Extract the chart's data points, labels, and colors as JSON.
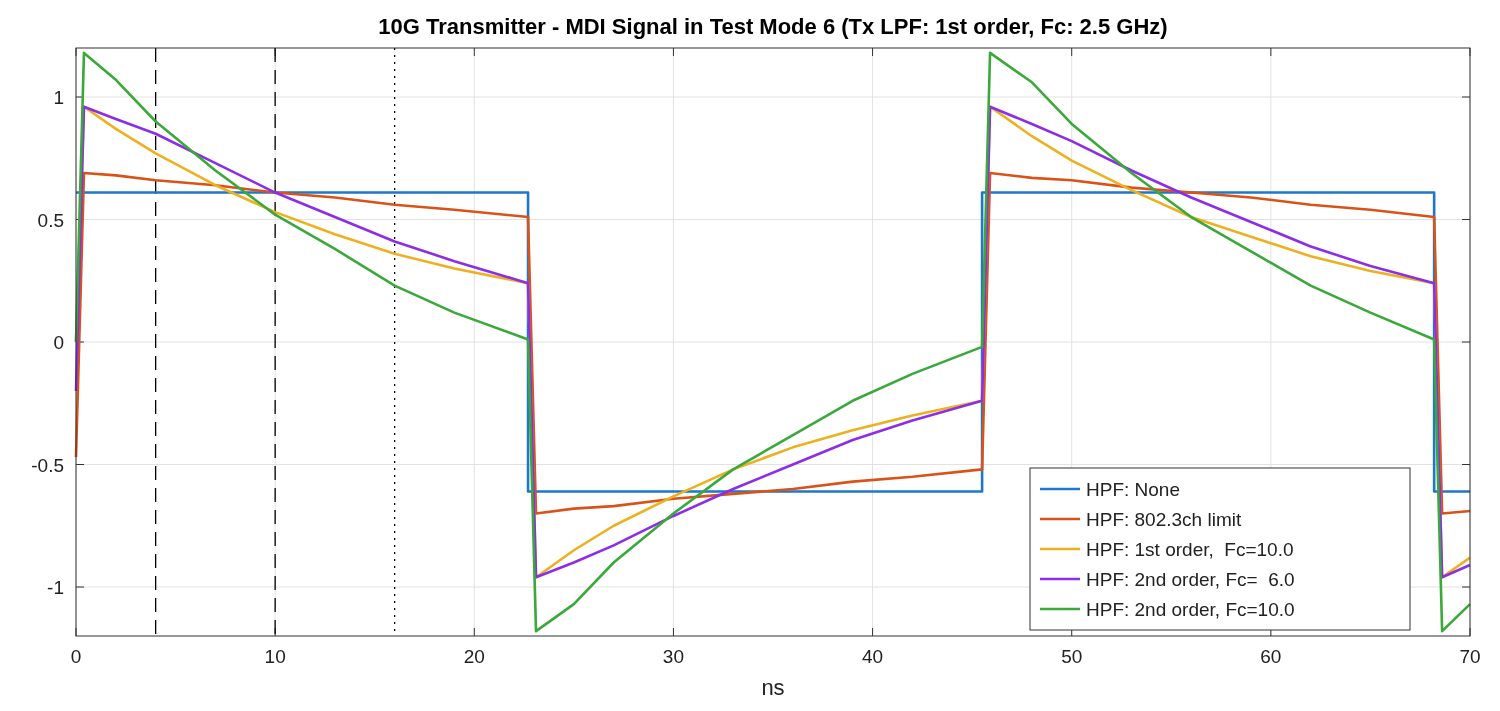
{
  "chart_data": {
    "type": "line",
    "title": "10G Transmitter - MDI Signal in Test Mode 6 (Tx LPF: 1st order, Fc: 2.5 GHz)",
    "xlabel": "ns",
    "x": [
      0,
      0.4,
      2,
      4,
      7,
      10,
      13,
      16,
      19,
      22.7,
      22.7,
      23.1,
      25,
      27,
      30,
      33,
      36,
      39,
      42,
      45.5,
      45.5,
      45.9,
      48,
      50,
      53,
      56,
      59,
      62,
      65,
      68.2,
      68.2,
      68.6,
      70
    ],
    "series": [
      {
        "name": "HPF: None",
        "color": "#1f77c9",
        "values": [
          0.61,
          0.61,
          0.61,
          0.61,
          0.61,
          0.61,
          0.61,
          0.61,
          0.61,
          0.61,
          -0.61,
          -0.61,
          -0.61,
          -0.61,
          -0.61,
          -0.61,
          -0.61,
          -0.61,
          -0.61,
          -0.61,
          0.61,
          0.61,
          0.61,
          0.61,
          0.61,
          0.61,
          0.61,
          0.61,
          0.61,
          0.61,
          -0.61,
          -0.61,
          -0.61
        ]
      },
      {
        "name": "HPF: 802.3ch limit",
        "color": "#d95319",
        "values": [
          -0.47,
          0.69,
          0.68,
          0.66,
          0.64,
          0.61,
          0.59,
          0.56,
          0.54,
          0.51,
          0.51,
          -0.7,
          -0.68,
          -0.67,
          -0.64,
          -0.62,
          -0.6,
          -0.57,
          -0.55,
          -0.52,
          -0.52,
          0.69,
          0.67,
          0.66,
          0.63,
          0.61,
          0.59,
          0.56,
          0.54,
          0.51,
          0.51,
          -0.7,
          -0.69
        ]
      },
      {
        "name": "HPF: 1st order,  Fc=10.0",
        "color": "#edb120",
        "values": [
          0,
          0.96,
          0.87,
          0.77,
          0.64,
          0.53,
          0.44,
          0.36,
          0.3,
          0.24,
          0.24,
          -0.96,
          -0.85,
          -0.75,
          -0.63,
          -0.52,
          -0.43,
          -0.36,
          -0.3,
          -0.24,
          -0.24,
          0.96,
          0.84,
          0.74,
          0.62,
          0.51,
          0.43,
          0.35,
          0.29,
          0.24,
          0.24,
          -0.96,
          -0.88
        ]
      },
      {
        "name": "HPF: 2nd order, Fc=  6.0",
        "color": "#8c2ee6",
        "values": [
          -0.2,
          0.96,
          0.91,
          0.85,
          0.73,
          0.61,
          0.51,
          0.41,
          0.33,
          0.24,
          0.24,
          -0.96,
          -0.9,
          -0.83,
          -0.71,
          -0.6,
          -0.5,
          -0.4,
          -0.32,
          -0.24,
          -0.24,
          0.96,
          0.89,
          0.82,
          0.7,
          0.59,
          0.49,
          0.39,
          0.31,
          0.24,
          0.24,
          -0.96,
          -0.91
        ]
      },
      {
        "name": "HPF: 2nd order, Fc=10.0",
        "color": "#3aa83a",
        "values": [
          0,
          1.18,
          1.07,
          0.9,
          0.7,
          0.52,
          0.38,
          0.23,
          0.12,
          0.01,
          0.01,
          -1.18,
          -1.07,
          -0.9,
          -0.7,
          -0.52,
          -0.38,
          -0.24,
          -0.13,
          -0.02,
          -0.02,
          1.18,
          1.06,
          0.89,
          0.69,
          0.51,
          0.37,
          0.23,
          0.12,
          0.01,
          0.01,
          -1.18,
          -1.07
        ]
      }
    ],
    "xlim": [
      0,
      70
    ],
    "xticks": [
      0,
      10,
      20,
      30,
      40,
      50,
      60,
      70
    ],
    "ylim": [
      -1.2,
      1.2
    ],
    "yticks": [
      -1,
      -0.5,
      0,
      0.5,
      1
    ],
    "ref_lines": [
      {
        "axis": "x",
        "value": 4,
        "color": "#000000",
        "line_style": "dashed"
      },
      {
        "axis": "x",
        "value": 10,
        "color": "#000000",
        "line_style": "dashed"
      },
      {
        "axis": "x",
        "value": 16,
        "color": "#000000",
        "line_style": "dotted"
      }
    ],
    "grid": true,
    "legend": "bottom right",
    "marker": "none",
    "line_style": "solid"
  }
}
